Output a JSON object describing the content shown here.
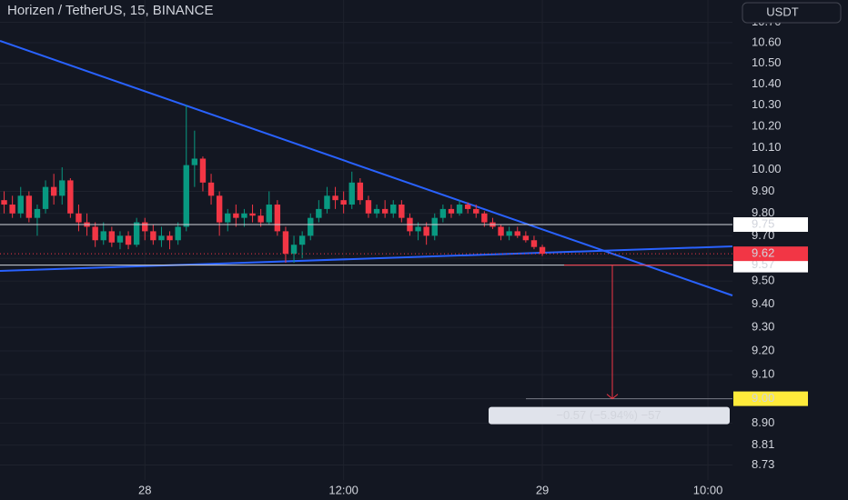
{
  "chart_data": {
    "type": "candlestick",
    "title": "Horizen / TetherUS, 15, BINANCE",
    "currency": "USDT",
    "categories": [
      null,
      null,
      null,
      null,
      null,
      null,
      null,
      null,
      null,
      null,
      null,
      null,
      null,
      null,
      null,
      null,
      null,
      "28",
      null,
      null,
      null,
      null,
      null,
      null,
      null,
      null,
      null,
      null,
      null,
      null,
      null,
      null,
      null,
      null,
      null,
      null,
      null,
      null,
      null,
      null,
      null,
      "12:00",
      null,
      null,
      null,
      null,
      null,
      null,
      null,
      null,
      null,
      null,
      null,
      null,
      null,
      null,
      null,
      null,
      null,
      null,
      null,
      null,
      null,
      null,
      null,
      "29",
      null,
      null,
      null,
      null,
      null,
      null,
      null,
      null,
      null,
      null,
      null,
      null,
      null,
      null,
      null,
      null,
      null,
      null,
      null,
      "10:00"
    ],
    "open": [
      9.86,
      9.84,
      9.8,
      9.88,
      9.78,
      9.82,
      9.92,
      9.88,
      9.95,
      9.8,
      9.76,
      9.74,
      9.68,
      9.72,
      9.67,
      9.7,
      9.66,
      9.76,
      9.72,
      9.68,
      9.7,
      9.68,
      9.74,
      10.02,
      10.05,
      9.94,
      9.88,
      9.76,
      9.8,
      9.78,
      9.8,
      9.79,
      9.76,
      9.84,
      9.72,
      9.62,
      9.66,
      9.7,
      9.78,
      9.82,
      9.88,
      9.86,
      9.84,
      9.94,
      9.86,
      9.8,
      9.82,
      9.8,
      9.84,
      9.78,
      9.72,
      9.74,
      9.7,
      9.78,
      9.82,
      9.8,
      9.84,
      9.82,
      9.8,
      9.76,
      9.74,
      9.7,
      9.72,
      9.7,
      9.68,
      9.65,
      null,
      null,
      null,
      null,
      null,
      null,
      null,
      null,
      null,
      null,
      null,
      null,
      null,
      null,
      null,
      null,
      null,
      null,
      null,
      null
    ],
    "high": [
      9.9,
      9.88,
      9.92,
      9.9,
      9.84,
      9.95,
      9.98,
      10.01,
      9.96,
      9.84,
      9.8,
      9.76,
      9.76,
      9.74,
      9.72,
      9.72,
      9.78,
      9.78,
      9.75,
      9.74,
      9.72,
      9.76,
      10.3,
      10.18,
      10.06,
      9.98,
      9.9,
      9.82,
      9.84,
      9.82,
      9.84,
      9.82,
      9.9,
      9.86,
      9.74,
      9.7,
      9.72,
      9.8,
      9.86,
      9.92,
      9.92,
      9.9,
      9.99,
      9.96,
      9.88,
      9.84,
      9.86,
      9.86,
      9.86,
      9.8,
      9.76,
      9.76,
      9.8,
      9.84,
      9.84,
      9.86,
      9.85,
      9.84,
      9.81,
      9.78,
      9.75,
      9.74,
      9.74,
      9.72,
      9.7,
      9.66,
      null,
      null,
      null,
      null,
      null,
      null,
      null,
      null,
      null,
      null,
      null,
      null,
      null,
      null,
      null,
      null,
      null,
      null,
      null,
      null
    ],
    "low": [
      9.8,
      9.78,
      9.78,
      9.76,
      9.7,
      9.8,
      9.84,
      9.84,
      9.78,
      9.72,
      9.7,
      9.65,
      9.66,
      9.65,
      9.64,
      9.64,
      9.65,
      9.68,
      9.66,
      9.65,
      9.64,
      9.66,
      9.72,
      9.92,
      9.9,
      9.84,
      9.7,
      9.72,
      9.74,
      9.74,
      9.76,
      9.74,
      9.75,
      9.7,
      9.58,
      9.58,
      9.6,
      9.68,
      9.76,
      9.8,
      9.82,
      9.8,
      9.82,
      9.84,
      9.78,
      9.78,
      9.78,
      9.78,
      9.76,
      9.7,
      9.68,
      9.66,
      9.68,
      9.76,
      9.78,
      9.79,
      9.8,
      9.78,
      9.74,
      9.73,
      9.68,
      9.68,
      9.69,
      9.67,
      9.64,
      9.61,
      null,
      null,
      null,
      null,
      null,
      null,
      null,
      null,
      null,
      null,
      null,
      null,
      null,
      null,
      null,
      null,
      null,
      null,
      null,
      null
    ],
    "close": [
      9.84,
      9.8,
      9.88,
      9.78,
      9.82,
      9.92,
      9.88,
      9.95,
      9.8,
      9.76,
      9.74,
      9.68,
      9.72,
      9.67,
      9.7,
      9.66,
      9.76,
      9.72,
      9.68,
      9.7,
      9.68,
      9.74,
      10.02,
      10.05,
      9.94,
      9.88,
      9.76,
      9.8,
      9.78,
      9.8,
      9.79,
      9.76,
      9.84,
      9.72,
      9.62,
      9.66,
      9.7,
      9.78,
      9.82,
      9.88,
      9.86,
      9.84,
      9.94,
      9.86,
      9.8,
      9.82,
      9.8,
      9.84,
      9.78,
      9.72,
      9.74,
      9.7,
      9.78,
      9.82,
      9.8,
      9.84,
      9.82,
      9.8,
      9.76,
      9.74,
      9.7,
      9.72,
      9.7,
      9.68,
      9.65,
      9.62,
      null,
      null,
      null,
      null,
      null,
      null,
      null,
      null,
      null,
      null,
      null,
      null,
      null,
      null,
      null,
      null,
      null,
      null,
      null,
      null
    ],
    "up_color": "#089981",
    "down_color": "#f23645",
    "log_scale": true,
    "ylim": [
      8.67,
      10.81
    ],
    "yticks": [
      {
        "value": 10.7,
        "label": "10.70"
      },
      {
        "value": 10.6,
        "label": "10.60"
      },
      {
        "value": 10.5,
        "label": "10.50"
      },
      {
        "value": 10.4,
        "label": "10.40"
      },
      {
        "value": 10.3,
        "label": "10.30"
      },
      {
        "value": 10.2,
        "label": "10.20"
      },
      {
        "value": 10.1,
        "label": "10.10"
      },
      {
        "value": 10,
        "label": "10.00"
      },
      {
        "value": 9.9,
        "label": "9.90"
      },
      {
        "value": 9.8,
        "label": "9.80"
      },
      {
        "value": 9.7,
        "label": "9.70"
      },
      {
        "value": 9.6,
        "label": "9.60"
      },
      {
        "value": 9.5,
        "label": "9.50"
      },
      {
        "value": 9.4,
        "label": "9.40"
      },
      {
        "value": 9.3,
        "label": "9.30"
      },
      {
        "value": 9.2,
        "label": "9.20"
      },
      {
        "value": 9.1,
        "label": "9.10"
      },
      {
        "value": 9,
        "label": "9.00"
      },
      {
        "value": 8.9,
        "label": "8.90"
      },
      8.81,
      8.73
    ],
    "grid": true,
    "horizontal_lines": [
      9.75,
      9.57
    ],
    "last_price": 9.62,
    "target": {
      "value": 9,
      "label": "9.00"
    },
    "measure_label": "−0.57 (−5.94%) −57"
  }
}
